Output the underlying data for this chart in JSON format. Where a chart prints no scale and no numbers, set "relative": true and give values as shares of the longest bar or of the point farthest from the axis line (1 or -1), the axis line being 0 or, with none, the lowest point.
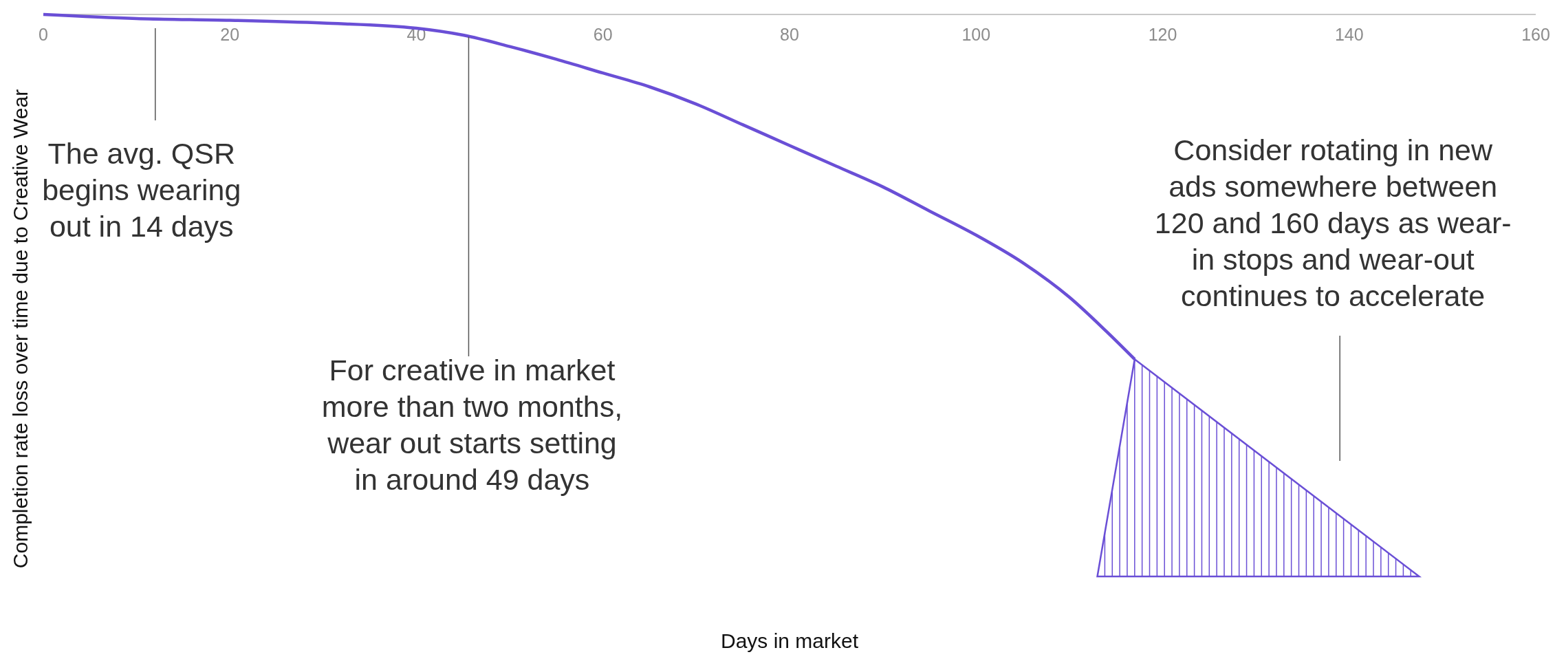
{
  "chart_data": {
    "type": "line",
    "relative": true,
    "ylabel": "Completion rate loss over time due to Creative Wear",
    "xlim": [
      0,
      160
    ],
    "xticks": [
      0,
      20,
      40,
      60,
      80,
      100,
      120,
      140,
      160
    ],
    "grid": false,
    "line_style": "solid",
    "series": [
      {
        "color": "#6a4fd6",
        "x": [
          0,
          10,
          20,
          30,
          40,
          45,
          50,
          55,
          60,
          65,
          70,
          75,
          80,
          85,
          90,
          95,
          100,
          105,
          110,
          114,
          117
        ],
        "values": [
          0,
          -0.012,
          -0.017,
          -0.025,
          -0.04,
          -0.06,
          -0.093,
          -0.13,
          -0.17,
          -0.21,
          -0.26,
          -0.32,
          -0.38,
          -0.44,
          -0.5,
          -0.57,
          -0.64,
          -0.72,
          -0.82,
          -0.92,
          -1
        ]
      }
    ],
    "annotations": [
      "The avg. QSR\nbegins wearing\nout in 14 days",
      {
        "text": "For creative in market\nmore than two months,\nwear  out starts setting\nin around 49 days",
        "x": 45.6,
        "y": -0.065
      },
      "Consider rotating in new\nads somewhere between\n120 and 160 days as wear-\nin stops and wear-out\ncontinues to accelerate",
      "Days in market"
    ]
  }
}
